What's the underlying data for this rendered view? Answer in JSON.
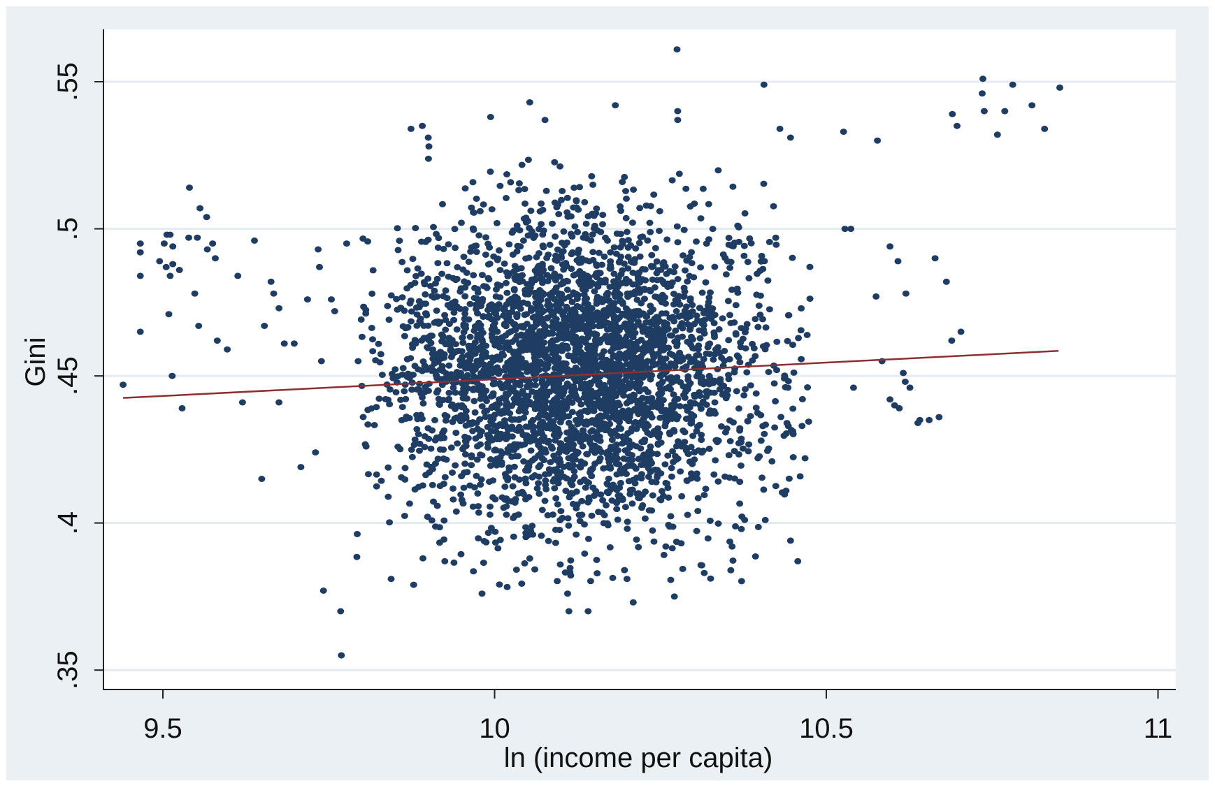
{
  "chart_data": {
    "type": "scatter",
    "title": "",
    "xlabel": "ln (income per capita)",
    "ylabel": "Gini",
    "xlim": [
      9.41,
      11.03
    ],
    "ylim": [
      0.34,
      0.568
    ],
    "x_ticks": [
      {
        "value": 9.5,
        "label": "9.5"
      },
      {
        "value": 10,
        "label": "10"
      },
      {
        "value": 10.5,
        "label": "10.5"
      },
      {
        "value": 11,
        "label": "11"
      }
    ],
    "y_ticks": [
      {
        "value": 0.35,
        "label": ".35"
      },
      {
        "value": 0.4,
        "label": ".4"
      },
      {
        "value": 0.45,
        "label": ".45"
      },
      {
        "value": 0.5,
        "label": ".5"
      },
      {
        "value": 0.55,
        "label": ".55"
      }
    ],
    "grid": true,
    "legend": "none",
    "colors": {
      "points": "#1f3d63",
      "fit_line": "#8e2f2f",
      "background": "#eaf0f3",
      "grid": "#e4ecf0"
    },
    "fit_line": {
      "x": [
        9.44,
        10.85
      ],
      "y": [
        0.4425,
        0.4585
      ]
    },
    "cloud": {
      "n": 3500,
      "x_mean": 10.12,
      "x_sd": 0.14,
      "x_range": [
        9.79,
        10.48
      ],
      "y_mean": 0.452,
      "y_sd": 0.026,
      "y_range": [
        0.378,
        0.53
      ],
      "seed": 7
    },
    "points": [
      [
        9.44,
        0.447
      ],
      [
        9.466,
        0.484
      ],
      [
        9.466,
        0.495
      ],
      [
        9.466,
        0.492
      ],
      [
        9.466,
        0.465
      ],
      [
        9.506,
        0.498
      ],
      [
        9.511,
        0.498
      ],
      [
        9.502,
        0.495
      ],
      [
        9.515,
        0.494
      ],
      [
        9.495,
        0.489
      ],
      [
        9.505,
        0.487
      ],
      [
        9.511,
        0.484
      ],
      [
        9.515,
        0.488
      ],
      [
        9.525,
        0.486
      ],
      [
        9.509,
        0.471
      ],
      [
        9.514,
        0.45
      ],
      [
        9.529,
        0.439
      ],
      [
        9.54,
        0.514
      ],
      [
        9.556,
        0.507
      ],
      [
        9.566,
        0.504
      ],
      [
        9.552,
        0.497
      ],
      [
        9.539,
        0.497
      ],
      [
        9.575,
        0.495
      ],
      [
        9.567,
        0.493
      ],
      [
        9.579,
        0.49
      ],
      [
        9.548,
        0.478
      ],
      [
        9.554,
        0.467
      ],
      [
        9.582,
        0.462
      ],
      [
        9.597,
        0.459
      ],
      [
        9.613,
        0.484
      ],
      [
        9.62,
        0.441
      ],
      [
        9.638,
        0.496
      ],
      [
        9.649,
        0.415
      ],
      [
        9.663,
        0.482
      ],
      [
        9.667,
        0.478
      ],
      [
        9.653,
        0.467
      ],
      [
        9.675,
        0.473
      ],
      [
        9.675,
        0.441
      ],
      [
        9.683,
        0.461
      ],
      [
        9.698,
        0.461
      ],
      [
        9.734,
        0.493
      ],
      [
        9.736,
        0.487
      ],
      [
        9.718,
        0.476
      ],
      [
        9.754,
        0.476
      ],
      [
        9.759,
        0.472
      ],
      [
        9.739,
        0.455
      ],
      [
        9.708,
        0.419
      ],
      [
        9.73,
        0.424
      ],
      [
        9.777,
        0.495
      ],
      [
        10.275,
        0.561
      ],
      [
        10.406,
        0.549
      ],
      [
        10.182,
        0.542
      ],
      [
        10.276,
        0.54
      ],
      [
        10.276,
        0.537
      ],
      [
        10.053,
        0.543
      ],
      [
        10.076,
        0.537
      ],
      [
        9.994,
        0.538
      ],
      [
        9.874,
        0.534
      ],
      [
        9.891,
        0.535
      ],
      [
        9.9,
        0.531
      ],
      [
        9.901,
        0.528
      ],
      [
        10.43,
        0.534
      ],
      [
        10.446,
        0.531
      ],
      [
        10.577,
        0.53
      ],
      [
        10.526,
        0.533
      ],
      [
        10.69,
        0.539
      ],
      [
        10.697,
        0.535
      ],
      [
        10.736,
        0.551
      ],
      [
        10.735,
        0.546
      ],
      [
        10.738,
        0.54
      ],
      [
        10.781,
        0.549
      ],
      [
        10.769,
        0.54
      ],
      [
        10.758,
        0.532
      ],
      [
        10.81,
        0.542
      ],
      [
        10.829,
        0.534
      ],
      [
        10.852,
        0.548
      ],
      [
        10.596,
        0.494
      ],
      [
        10.608,
        0.489
      ],
      [
        10.62,
        0.478
      ],
      [
        10.664,
        0.49
      ],
      [
        10.681,
        0.482
      ],
      [
        10.703,
        0.465
      ],
      [
        10.689,
        0.462
      ],
      [
        10.616,
        0.451
      ],
      [
        10.619,
        0.448
      ],
      [
        10.626,
        0.446
      ],
      [
        10.596,
        0.442
      ],
      [
        10.603,
        0.44
      ],
      [
        10.61,
        0.439
      ],
      [
        10.641,
        0.435
      ],
      [
        10.638,
        0.434
      ],
      [
        10.655,
        0.435
      ],
      [
        10.67,
        0.436
      ],
      [
        10.584,
        0.455
      ],
      [
        10.541,
        0.446
      ],
      [
        10.468,
        0.422
      ],
      [
        10.446,
        0.394
      ],
      [
        10.457,
        0.387
      ],
      [
        10.528,
        0.5
      ],
      [
        10.537,
        0.5
      ],
      [
        10.575,
        0.477
      ],
      [
        9.742,
        0.377
      ],
      [
        9.768,
        0.37
      ],
      [
        9.769,
        0.355
      ],
      [
        9.878,
        0.379
      ],
      [
        9.981,
        0.376
      ],
      [
        10.112,
        0.37
      ],
      [
        10.141,
        0.37
      ],
      [
        10.11,
        0.376
      ],
      [
        10.209,
        0.373
      ],
      [
        10.271,
        0.375
      ],
      [
        10.316,
        0.383
      ],
      [
        10.358,
        0.392
      ],
      [
        10.408,
        0.401
      ],
      [
        9.844,
        0.381
      ],
      [
        9.892,
        0.388
      ],
      [
        9.925,
        0.387
      ]
    ]
  }
}
